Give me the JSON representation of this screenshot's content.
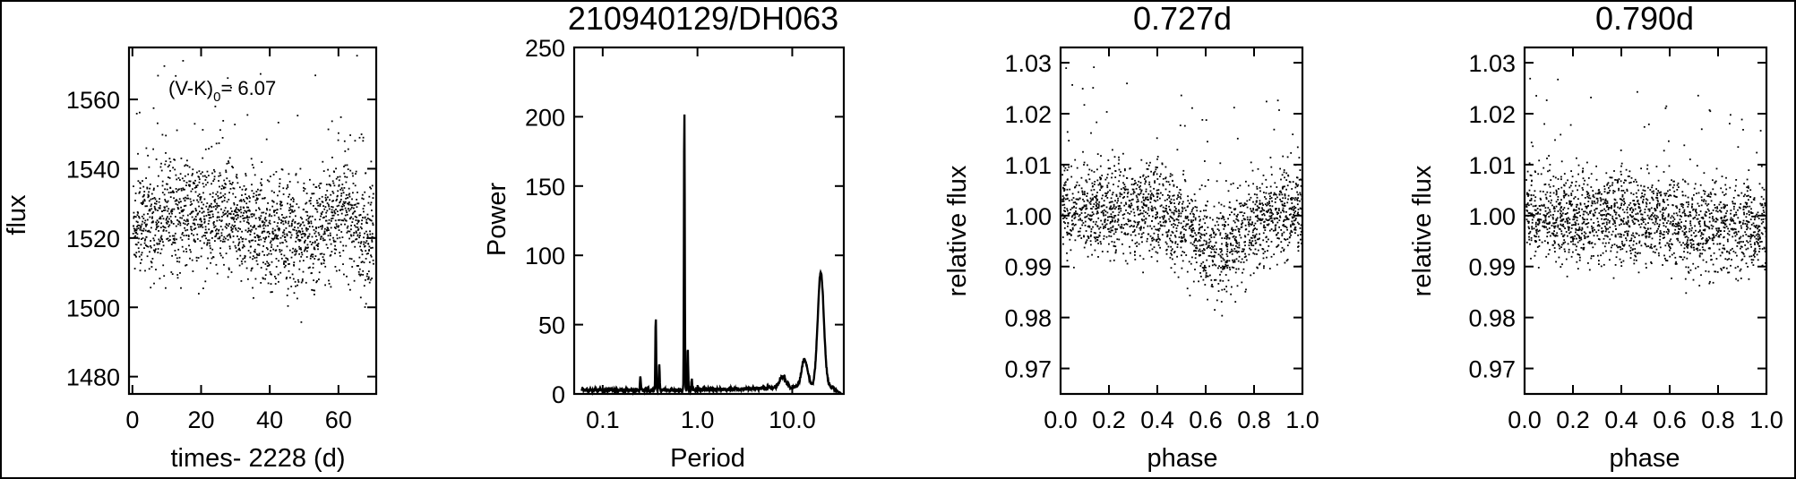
{
  "figure": {
    "title": "210940129/DH063"
  },
  "chart_data": [
    {
      "type": "scatter",
      "id": "lightcurve",
      "title": "",
      "xlabel": "times- 2228 (d)",
      "ylabel": "flux",
      "xlim": [
        -1,
        71
      ],
      "ylim": [
        1475,
        1575
      ],
      "xticks": [
        0,
        20,
        40,
        60
      ],
      "xtick_labels": [
        "0",
        "20",
        "40",
        "60"
      ],
      "yticks": [
        1480,
        1500,
        1520,
        1540,
        1560
      ],
      "ytick_labels": [
        "1480",
        "1500",
        "1520",
        "1540",
        "1560"
      ],
      "annotation": {
        "main": "(V-K)",
        "sub": "0",
        "value": "= 6.07"
      },
      "series_description": "dense scatter of flux vs time, ~1900 cadences, mean ~1525, brightening near t~60",
      "points": {
        "n": 1900,
        "x_range": [
          0,
          70
        ],
        "mean": 1524,
        "scatter": 8,
        "bump_center": 60,
        "bump_amp": 8
      }
    },
    {
      "type": "line",
      "id": "periodogram",
      "title": "",
      "xlabel": "Period",
      "ylabel": "Power",
      "xscale": "log",
      "xlim": [
        0.05,
        35
      ],
      "ylim": [
        0,
        250
      ],
      "xticks": [
        0.1,
        1.0,
        10.0
      ],
      "xtick_labels": [
        "0.1",
        "1.0",
        "10.0"
      ],
      "yticks": [
        0,
        50,
        100,
        150,
        200,
        250
      ],
      "ytick_labels": [
        "0",
        "50",
        "100",
        "150",
        "200",
        "250"
      ],
      "peaks": [
        {
          "x": 0.25,
          "y": 10
        },
        {
          "x": 0.363,
          "y": 53
        },
        {
          "x": 0.395,
          "y": 20
        },
        {
          "x": 0.727,
          "y": 202
        },
        {
          "x": 0.79,
          "y": 30
        },
        {
          "x": 0.87,
          "y": 8
        },
        {
          "x": 7.9,
          "y": 8
        },
        {
          "x": 13.5,
          "y": 20
        },
        {
          "x": 20.0,
          "y": 83
        }
      ]
    },
    {
      "type": "scatter",
      "id": "phase1",
      "title": "0.727d",
      "xlabel": "phase",
      "ylabel": "relative flux",
      "xlim": [
        0,
        1
      ],
      "ylim": [
        0.965,
        1.033
      ],
      "xticks": [
        0.0,
        0.2,
        0.4,
        0.6,
        0.8,
        1.0
      ],
      "xtick_labels": [
        "0.0",
        "0.2",
        "0.4",
        "0.6",
        "0.8",
        "1.0"
      ],
      "yticks": [
        0.97,
        0.98,
        0.99,
        1.0,
        1.01,
        1.02,
        1.03
      ],
      "ytick_labels": [
        "0.97",
        "0.98",
        "0.99",
        "1.00",
        "1.01",
        "1.02",
        "1.03"
      ],
      "points": {
        "n": 1900,
        "baseline": 1.0015,
        "dip_center": 0.65,
        "dip_depth": 0.0075,
        "scatter": 0.0045
      }
    },
    {
      "type": "scatter",
      "id": "phase2",
      "title": "0.790d",
      "xlabel": "phase",
      "ylabel": "relative flux",
      "xlim": [
        0,
        1
      ],
      "ylim": [
        0.965,
        1.033
      ],
      "xticks": [
        0.0,
        0.2,
        0.4,
        0.6,
        0.8,
        1.0
      ],
      "xtick_labels": [
        "0.0",
        "0.2",
        "0.4",
        "0.6",
        "0.8",
        "1.0"
      ],
      "yticks": [
        0.97,
        0.98,
        0.99,
        1.0,
        1.01,
        1.02,
        1.03
      ],
      "ytick_labels": [
        "0.97",
        "0.98",
        "0.99",
        "1.00",
        "1.01",
        "1.02",
        "1.03"
      ],
      "points": {
        "n": 1900,
        "baseline": 1.0005,
        "slope": -0.003,
        "scatter": 0.0045
      }
    }
  ]
}
